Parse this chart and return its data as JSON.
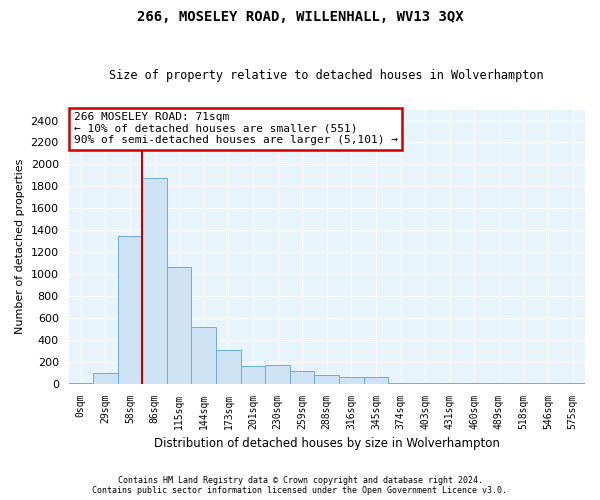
{
  "title": "266, MOSELEY ROAD, WILLENHALL, WV13 3QX",
  "subtitle": "Size of property relative to detached houses in Wolverhampton",
  "xlabel": "Distribution of detached houses by size in Wolverhampton",
  "ylabel": "Number of detached properties",
  "bar_color": "#cfe2f3",
  "bar_edge_color": "#6aaed6",
  "background_color": "#e8f4fb",
  "grid_color": "#ffffff",
  "categories": [
    "0sqm",
    "29sqm",
    "58sqm",
    "86sqm",
    "115sqm",
    "144sqm",
    "173sqm",
    "201sqm",
    "230sqm",
    "259sqm",
    "288sqm",
    "316sqm",
    "345sqm",
    "374sqm",
    "403sqm",
    "431sqm",
    "460sqm",
    "489sqm",
    "518sqm",
    "546sqm",
    "575sqm"
  ],
  "values": [
    5,
    100,
    1350,
    1880,
    1060,
    520,
    310,
    160,
    170,
    115,
    75,
    65,
    65,
    5,
    5,
    5,
    5,
    5,
    5,
    5,
    5
  ],
  "ylim": [
    0,
    2500
  ],
  "yticks": [
    0,
    200,
    400,
    600,
    800,
    1000,
    1200,
    1400,
    1600,
    1800,
    2000,
    2200,
    2400
  ],
  "property_line_x": 2.5,
  "annotation_title": "266 MOSELEY ROAD: 71sqm",
  "annotation_line1": "← 10% of detached houses are smaller (551)",
  "annotation_line2": "90% of semi-detached houses are larger (5,101) →",
  "annotation_box_color": "#ffffff",
  "annotation_box_edge": "#cc0000",
  "property_line_color": "#cc0000",
  "footer1": "Contains HM Land Registry data © Crown copyright and database right 2024.",
  "footer2": "Contains public sector information licensed under the Open Government Licence v3.0."
}
